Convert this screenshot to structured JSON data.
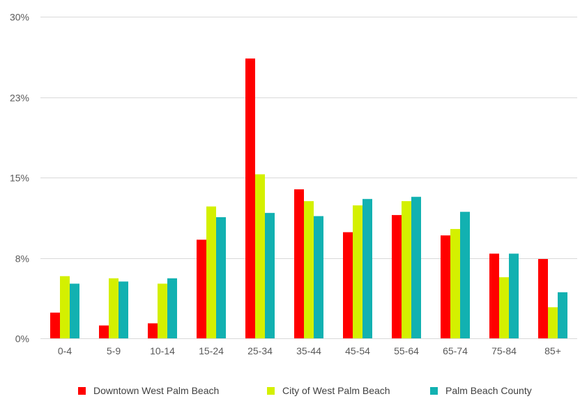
{
  "chart_data": {
    "type": "bar",
    "title": "",
    "xlabel": "",
    "ylabel": "",
    "ylim": [
      0,
      30
    ],
    "y_ticks": [
      0,
      7.5,
      15,
      22.5,
      30
    ],
    "y_tick_labels": [
      "0%",
      "8%",
      "15%",
      "23%",
      "30%"
    ],
    "grid": true,
    "legend_position": "bottom",
    "categories": [
      "0-4",
      "5-9",
      "10-14",
      "15-24",
      "25-34",
      "35-44",
      "45-54",
      "55-64",
      "65-74",
      "75-84",
      "85+"
    ],
    "series": [
      {
        "name": "Downtown West Palm Beach",
        "color": "#ff0000",
        "values": [
          2.4,
          1.2,
          1.4,
          9.2,
          26.1,
          13.9,
          9.9,
          11.5,
          9.6,
          7.9,
          7.4
        ]
      },
      {
        "name": "City of West Palm Beach",
        "color": "#d4f000",
        "values": [
          5.8,
          5.6,
          5.1,
          12.3,
          15.3,
          12.8,
          12.4,
          12.8,
          10.2,
          5.7,
          2.9
        ]
      },
      {
        "name": "Palm Beach County",
        "color": "#12b1b1",
        "values": [
          5.1,
          5.3,
          5.6,
          11.3,
          11.7,
          11.4,
          13.0,
          13.2,
          11.8,
          7.9,
          4.3
        ]
      }
    ]
  }
}
